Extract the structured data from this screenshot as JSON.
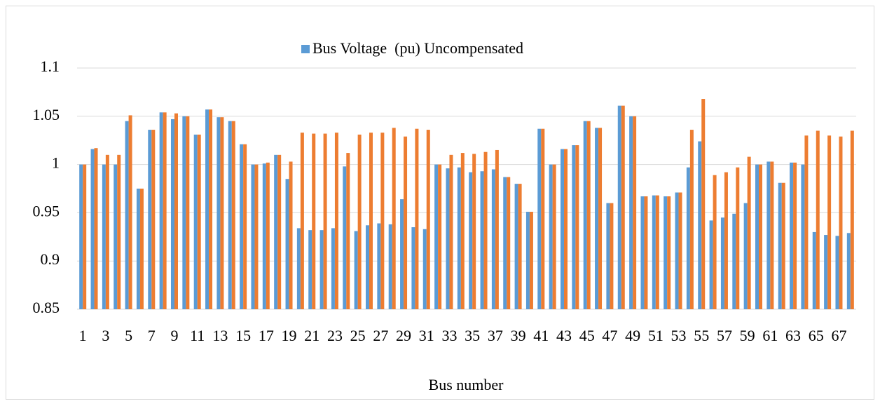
{
  "chart_data": {
    "type": "bar",
    "x_label": "Bus number",
    "categories": [
      "1",
      null,
      "3",
      null,
      "5",
      null,
      "7",
      null,
      "9",
      null,
      "11",
      null,
      "13",
      null,
      "15",
      null,
      "17",
      null,
      "19",
      null,
      "21",
      null,
      "23",
      null,
      "25",
      null,
      "27",
      null,
      "29",
      null,
      "31",
      null,
      "33",
      null,
      "35",
      null,
      "37",
      null,
      "39",
      null,
      "41",
      null,
      "43",
      null,
      "45",
      null,
      "47",
      null,
      "49",
      null,
      "51",
      null,
      "53",
      null,
      "55",
      null,
      "57",
      null,
      "59",
      null,
      "61",
      null,
      "63",
      null,
      "65",
      null,
      "67",
      null
    ],
    "series": [
      {
        "name": "Bus Voltage  (pu) Uncompensated",
        "color": "#5b9bd5",
        "values": [
          1.0,
          1.016,
          1.0,
          1.0,
          1.045,
          0.975,
          1.036,
          1.054,
          1.047,
          1.05,
          1.031,
          1.057,
          1.049,
          1.045,
          1.021,
          1.0,
          1.001,
          1.01,
          0.985,
          0.934,
          0.932,
          0.932,
          0.934,
          0.998,
          0.931,
          0.937,
          0.939,
          0.938,
          0.964,
          0.935,
          0.933,
          1.0,
          0.996,
          0.997,
          0.992,
          0.993,
          0.995,
          0.987,
          0.98,
          0.951,
          1.037,
          1.0,
          1.016,
          1.02,
          1.045,
          1.038,
          0.96,
          1.061,
          1.05,
          0.967,
          0.968,
          0.967,
          0.971,
          0.997,
          1.024,
          0.942,
          0.945,
          0.949,
          0.96,
          1.0,
          1.003,
          0.981,
          1.002,
          1.0,
          0.93,
          0.927,
          0.926,
          0.929
        ]
      },
      {
        "name": null,
        "color": "#ed7d31",
        "values": [
          1.0,
          1.017,
          1.01,
          1.01,
          1.051,
          0.975,
          1.036,
          1.054,
          1.053,
          1.05,
          1.031,
          1.057,
          1.049,
          1.045,
          1.021,
          1.0,
          1.002,
          1.01,
          1.003,
          1.033,
          1.032,
          1.032,
          1.033,
          1.012,
          1.031,
          1.033,
          1.033,
          1.038,
          1.029,
          1.037,
          1.036,
          1.0,
          1.01,
          1.012,
          1.011,
          1.013,
          1.015,
          0.987,
          0.98,
          0.951,
          1.037,
          1.0,
          1.016,
          1.02,
          1.045,
          1.038,
          0.96,
          1.061,
          1.05,
          0.967,
          0.968,
          0.967,
          0.971,
          1.036,
          1.068,
          0.989,
          0.992,
          0.997,
          1.008,
          1.0,
          1.003,
          0.981,
          1.002,
          1.03,
          1.035,
          1.03,
          1.029,
          1.035
        ]
      }
    ],
    "ylim": [
      0.85,
      1.1
    ],
    "yticks": [
      0.85,
      0.9,
      0.95,
      1,
      1.05,
      1.1
    ],
    "grid": true,
    "legend": "top"
  }
}
